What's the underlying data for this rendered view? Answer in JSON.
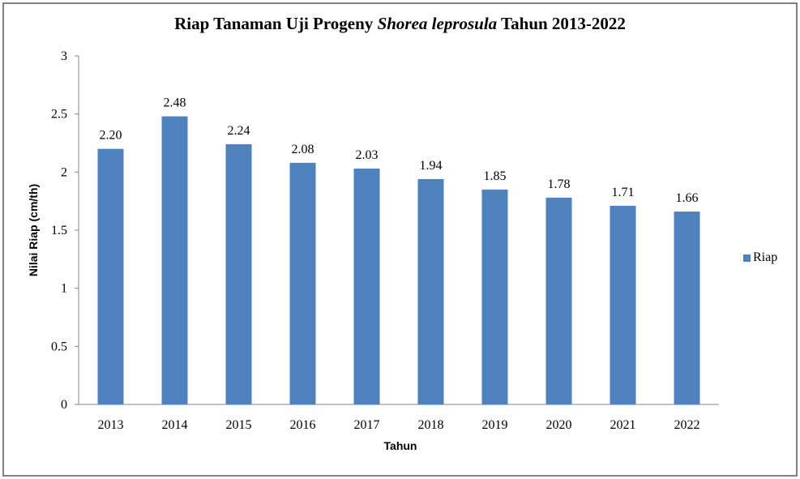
{
  "chart_data": {
    "type": "bar",
    "title": "Riap Tanaman Uji Progeny Shorea leprosula Tahun 2013-2022",
    "title_parts": {
      "prefix": "Riap Tanaman Uji Progeny ",
      "italic": "Shorea leprosula",
      "suffix": " Tahun 2013-2022"
    },
    "xlabel": "Tahun",
    "ylabel": "Nilai Riap (cm/th)",
    "categories": [
      "2013",
      "2014",
      "2015",
      "2016",
      "2017",
      "2018",
      "2019",
      "2020",
      "2021",
      "2022"
    ],
    "series": [
      {
        "name": "Riap",
        "color": "#4F81BD",
        "values": [
          2.2,
          2.48,
          2.24,
          2.08,
          2.03,
          1.94,
          1.85,
          1.78,
          1.71,
          1.66
        ],
        "data_labels": [
          "2.20",
          "2.48",
          "2.24",
          "2.08",
          "2.03",
          "1.94",
          "1.85",
          "1.78",
          "1.71",
          "1.66"
        ]
      }
    ],
    "ylim": [
      0,
      3
    ],
    "yticks": [
      "0",
      "0.5",
      "1",
      "1.5",
      "2",
      "2.5",
      "3"
    ],
    "grid": false,
    "legend_position": "right"
  },
  "legend": {
    "label": "Riap",
    "color": "#4F81BD"
  },
  "colors": {
    "bar": "#4F81BD",
    "axis": "#868686",
    "border": "#808080"
  }
}
